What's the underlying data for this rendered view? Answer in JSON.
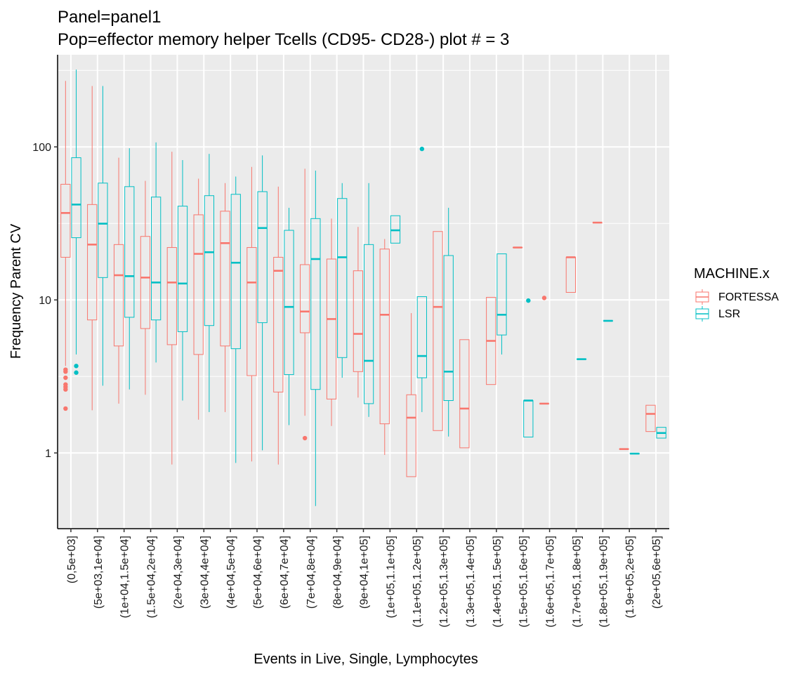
{
  "title_line1": "Panel=panel1",
  "title_line2": "Pop=effector memory helper Tcells (CD95- CD28-) plot # = 3",
  "colors": {
    "fortessa": "#F8766D",
    "lsr": "#00BFC4",
    "panel_bg": "#EBEBEB",
    "grid": "#FFFFFF"
  },
  "chart_data": {
    "type": "boxplot",
    "title": "Panel=panel1 / Pop=effector memory helper Tcells (CD95- CD28-) plot # = 3",
    "xlabel": "Events in Live, Single, Lymphocytes",
    "ylabel": "Frequency Parent CV",
    "yscale": "log10",
    "ylim": [
      0.32,
      400
    ],
    "yticks": [
      1,
      10,
      100
    ],
    "ytick_labels": [
      "1",
      "10",
      "100"
    ],
    "legend": {
      "title": "MACHINE.x",
      "position": "right",
      "entries": [
        "FORTESSA",
        "LSR"
      ]
    },
    "categories": [
      "(0,5e+03]",
      "(5e+03,1e+04]",
      "(1e+04,1.5e+04]",
      "(1.5e+04,2e+04]",
      "(2e+04,3e+04]",
      "(3e+04,4e+04]",
      "(4e+04,5e+04]",
      "(5e+04,6e+04]",
      "(6e+04,7e+04]",
      "(7e+04,8e+04]",
      "(8e+04,9e+04]",
      "(9e+04,1e+05]",
      "(1e+05,1.1e+05]",
      "(1.1e+05,1.2e+05]",
      "(1.2e+05,1.3e+05]",
      "(1.3e+05,1.4e+05]",
      "(1.4e+05,1.5e+05]",
      "(1.5e+05,1.6e+05]",
      "(1.6e+05,1.7e+05]",
      "(1.7e+05,1.8e+05]",
      "(1.8e+05,1.9e+05]",
      "(1.9e+05,2e+05]",
      "(2e+05,6e+05]"
    ],
    "series": [
      {
        "name": "FORTESSA",
        "boxes": [
          {
            "cat": 0,
            "lw": 3.7,
            "q1": 19,
            "med": 37,
            "q3": 57,
            "uw": 270,
            "out": [
              3.5,
              3.4,
              3.1,
              2.8,
              2.7,
              2.6,
              1.95
            ]
          },
          {
            "cat": 1,
            "lw": 1.9,
            "q1": 7.4,
            "med": 23,
            "q3": 42,
            "uw": 250,
            "out": []
          },
          {
            "cat": 2,
            "lw": 2.1,
            "q1": 5.0,
            "med": 14.5,
            "q3": 23,
            "uw": 85,
            "out": []
          },
          {
            "cat": 3,
            "lw": 2.4,
            "q1": 6.5,
            "med": 14,
            "q3": 26,
            "uw": 60,
            "out": []
          },
          {
            "cat": 4,
            "lw": 0.84,
            "q1": 5.1,
            "med": 13,
            "q3": 22,
            "uw": 93,
            "out": []
          },
          {
            "cat": 5,
            "lw": 1.65,
            "q1": 4.4,
            "med": 20,
            "q3": 36,
            "uw": 62,
            "out": []
          },
          {
            "cat": 6,
            "lw": 1.85,
            "q1": 5.0,
            "med": 23.5,
            "q3": 38,
            "uw": 58,
            "out": []
          },
          {
            "cat": 7,
            "lw": 0.88,
            "q1": 3.2,
            "med": 13,
            "q3": 22,
            "uw": 74,
            "out": []
          },
          {
            "cat": 8,
            "lw": 0.84,
            "q1": 2.5,
            "med": 15.5,
            "q3": 19,
            "uw": 55,
            "out": []
          },
          {
            "cat": 9,
            "lw": 1.75,
            "q1": 6.1,
            "med": 8.4,
            "q3": 17,
            "uw": 72,
            "out": [
              1.25
            ]
          },
          {
            "cat": 10,
            "lw": 1.5,
            "q1": 2.25,
            "med": 7.5,
            "q3": 18.5,
            "uw": 34,
            "out": []
          },
          {
            "cat": 11,
            "lw": 2.3,
            "q1": 3.4,
            "med": 6.0,
            "q3": 15.5,
            "uw": 30,
            "out": []
          },
          {
            "cat": 12,
            "lw": 0.97,
            "q1": 1.55,
            "med": 8.0,
            "q3": 21.5,
            "uw": 25,
            "out": []
          },
          {
            "cat": 13,
            "lw": 0.7,
            "q1": 0.7,
            "med": 1.7,
            "q3": 2.4,
            "uw": 8.2,
            "out": []
          },
          {
            "cat": 14,
            "lw": 1.4,
            "q1": 1.4,
            "med": 9.0,
            "q3": 28,
            "uw": 28,
            "out": []
          },
          {
            "cat": 15,
            "lw": 1.08,
            "q1": 1.08,
            "med": 1.95,
            "q3": 5.5,
            "uw": 5.5,
            "out": []
          },
          {
            "cat": 16,
            "lw": 2.8,
            "q1": 2.8,
            "med": 5.4,
            "q3": 10.4,
            "uw": 10.4,
            "out": []
          },
          {
            "cat": 17,
            "lw": 22,
            "q1": 22,
            "med": 22,
            "q3": 22,
            "uw": 22,
            "out": []
          },
          {
            "cat": 18,
            "lw": 2.1,
            "q1": 2.1,
            "med": 2.1,
            "q3": 2.1,
            "uw": 2.1,
            "out": [
              10.3
            ]
          },
          {
            "cat": 19,
            "lw": 11.2,
            "q1": 11.2,
            "med": 19,
            "q3": 19,
            "uw": 19,
            "out": []
          },
          {
            "cat": 20,
            "lw": 32,
            "q1": 32,
            "med": 32,
            "q3": 32,
            "uw": 32,
            "out": []
          },
          {
            "cat": 21,
            "lw": 1.06,
            "q1": 1.06,
            "med": 1.06,
            "q3": 1.06,
            "uw": 1.06,
            "out": []
          },
          {
            "cat": 22,
            "lw": 1.38,
            "q1": 1.38,
            "med": 1.8,
            "q3": 2.05,
            "uw": 2.05,
            "out": []
          }
        ]
      },
      {
        "name": "LSR",
        "boxes": [
          {
            "cat": 0,
            "lw": 4.4,
            "q1": 25.5,
            "med": 42,
            "q3": 85,
            "uw": 320,
            "out": [
              3.7,
              3.35
            ]
          },
          {
            "cat": 1,
            "lw": 2.75,
            "q1": 14,
            "med": 31.5,
            "q3": 58,
            "uw": 250,
            "out": []
          },
          {
            "cat": 2,
            "lw": 2.6,
            "q1": 7.7,
            "med": 14.3,
            "q3": 55,
            "uw": 98,
            "out": []
          },
          {
            "cat": 3,
            "lw": 3.9,
            "q1": 7.4,
            "med": 13,
            "q3": 47,
            "uw": 107,
            "out": []
          },
          {
            "cat": 4,
            "lw": 2.2,
            "q1": 6.2,
            "med": 12.8,
            "q3": 41,
            "uw": 82,
            "out": []
          },
          {
            "cat": 5,
            "lw": 1.85,
            "q1": 6.8,
            "med": 20.5,
            "q3": 48,
            "uw": 90,
            "out": []
          },
          {
            "cat": 6,
            "lw": 0.86,
            "q1": 4.8,
            "med": 17.5,
            "q3": 49,
            "uw": 64,
            "out": []
          },
          {
            "cat": 7,
            "lw": 1.04,
            "q1": 7.1,
            "med": 29.5,
            "q3": 51,
            "uw": 88,
            "out": []
          },
          {
            "cat": 8,
            "lw": 1.52,
            "q1": 3.25,
            "med": 9.0,
            "q3": 28.5,
            "uw": 40,
            "out": []
          },
          {
            "cat": 9,
            "lw": 0.45,
            "q1": 2.6,
            "med": 18.5,
            "q3": 34,
            "uw": 70,
            "out": []
          },
          {
            "cat": 10,
            "lw": 3.1,
            "q1": 4.2,
            "med": 19,
            "q3": 46,
            "uw": 58,
            "out": []
          },
          {
            "cat": 11,
            "lw": 1.72,
            "q1": 2.1,
            "med": 4.0,
            "q3": 23,
            "uw": 58,
            "out": []
          },
          {
            "cat": 12,
            "lw": 23.5,
            "q1": 23.5,
            "med": 28.5,
            "q3": 35.5,
            "uw": 35.5,
            "out": []
          },
          {
            "cat": 13,
            "lw": 1.85,
            "q1": 3.1,
            "med": 4.3,
            "q3": 10.5,
            "uw": 10.5,
            "out": [
              97
            ]
          },
          {
            "cat": 14,
            "lw": 1.28,
            "q1": 2.2,
            "med": 3.4,
            "q3": 19.5,
            "uw": 40,
            "out": []
          },
          {
            "cat": 16,
            "lw": 4.4,
            "q1": 5.9,
            "med": 8.0,
            "q3": 20,
            "uw": 20,
            "out": []
          },
          {
            "cat": 17,
            "lw": 1.27,
            "q1": 1.27,
            "med": 2.2,
            "q3": 2.2,
            "uw": 2.2,
            "out": [
              9.9
            ]
          },
          {
            "cat": 19,
            "lw": 4.1,
            "q1": 4.1,
            "med": 4.1,
            "q3": 4.1,
            "uw": 4.1,
            "out": []
          },
          {
            "cat": 20,
            "lw": 7.3,
            "q1": 7.3,
            "med": 7.3,
            "q3": 7.3,
            "uw": 7.3,
            "out": []
          },
          {
            "cat": 21,
            "lw": 0.99,
            "q1": 0.99,
            "med": 0.99,
            "q3": 0.99,
            "uw": 0.99,
            "out": []
          },
          {
            "cat": 22,
            "lw": 1.25,
            "q1": 1.25,
            "med": 1.35,
            "q3": 1.47,
            "uw": 1.47,
            "out": []
          }
        ]
      }
    ]
  }
}
